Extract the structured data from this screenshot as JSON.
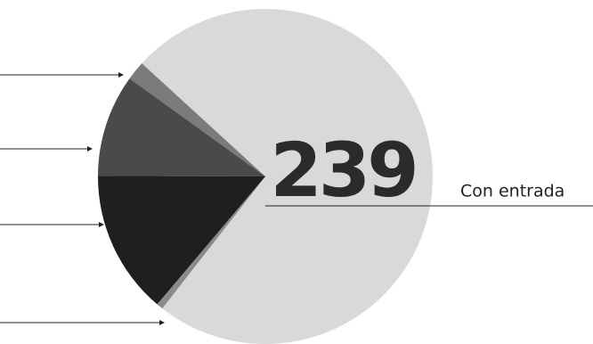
{
  "chart_data": {
    "type": "pie",
    "categories": [
      "Con entrada",
      null,
      null,
      null,
      null
    ],
    "values": [
      239,
      6,
      32,
      45,
      2
    ],
    "colors": [
      "#d9d9d9",
      "#7b7b7b",
      "#4a4a4a",
      "#1f1f1e",
      "#8a8a8a"
    ]
  }
}
